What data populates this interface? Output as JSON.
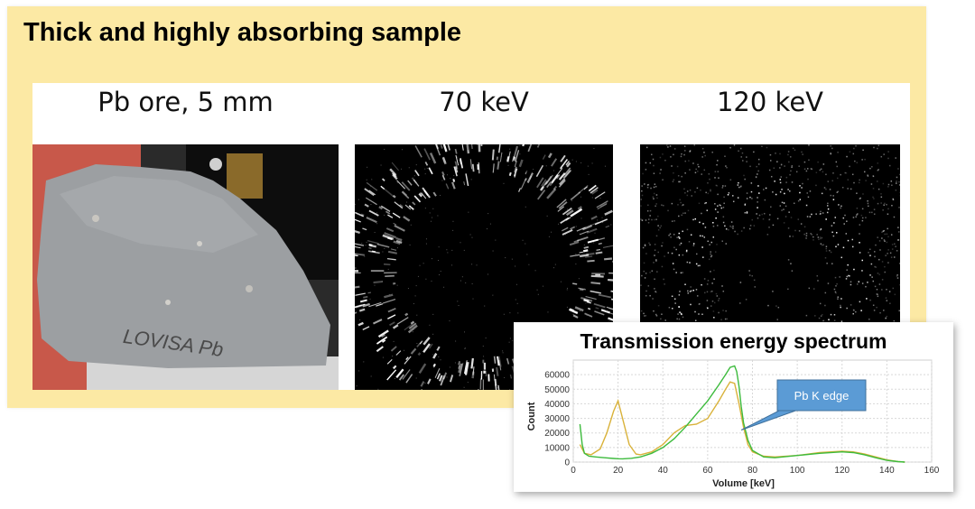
{
  "slide": {
    "title": "Thick and highly absorbing sample",
    "labels": [
      "Pb ore, 5 mm",
      "70 keV",
      "120 keV"
    ],
    "photo_label": "LOVISA Pb"
  },
  "chart_data": {
    "type": "line",
    "title": "Transmission energy spectrum",
    "xlabel": "Volume [keV]",
    "ylabel": "Count",
    "xlim": [
      0,
      160
    ],
    "ylim": [
      0,
      70000
    ],
    "xticks": [
      0,
      20,
      40,
      60,
      80,
      100,
      120,
      140,
      160
    ],
    "yticks": [
      0,
      10000,
      20000,
      30000,
      40000,
      50000,
      60000
    ],
    "grid": true,
    "annotation": {
      "text": "Pb K edge",
      "x": 75,
      "y": 22000
    },
    "series": [
      {
        "name": "green",
        "color": "#3dbb3d",
        "x": [
          3,
          4,
          5,
          7,
          10,
          14,
          18,
          20,
          22,
          26,
          30,
          35,
          40,
          45,
          50,
          55,
          60,
          65,
          68,
          70,
          72,
          73,
          74,
          75,
          76,
          78,
          80,
          85,
          90,
          100,
          110,
          120,
          125,
          130,
          135,
          140,
          145,
          148
        ],
        "y": [
          26000,
          12000,
          6000,
          4000,
          3500,
          3000,
          2500,
          2300,
          2200,
          2600,
          3500,
          6000,
          10000,
          16000,
          24000,
          33000,
          42000,
          53000,
          60000,
          65000,
          66000,
          62000,
          52000,
          38000,
          27000,
          15000,
          8000,
          3500,
          3000,
          4500,
          6000,
          7000,
          6500,
          5000,
          3000,
          1200,
          300,
          0
        ]
      },
      {
        "name": "yellow",
        "color": "#d9b23a",
        "x": [
          3,
          5,
          8,
          12,
          15,
          18,
          20,
          22,
          25,
          28,
          30,
          35,
          40,
          45,
          50,
          55,
          60,
          65,
          68,
          70,
          72,
          74,
          76,
          78,
          80,
          85,
          90,
          100,
          110,
          120,
          125,
          130,
          135,
          140,
          145,
          148
        ],
        "y": [
          12000,
          6000,
          5000,
          9000,
          20000,
          35000,
          42000,
          30000,
          12000,
          5500,
          5000,
          7000,
          12000,
          20000,
          25000,
          26000,
          30000,
          42000,
          50000,
          55000,
          54000,
          40000,
          24000,
          12000,
          7000,
          4000,
          3500,
          4500,
          6500,
          7500,
          7000,
          5500,
          3500,
          1500,
          400,
          0
        ]
      }
    ]
  }
}
